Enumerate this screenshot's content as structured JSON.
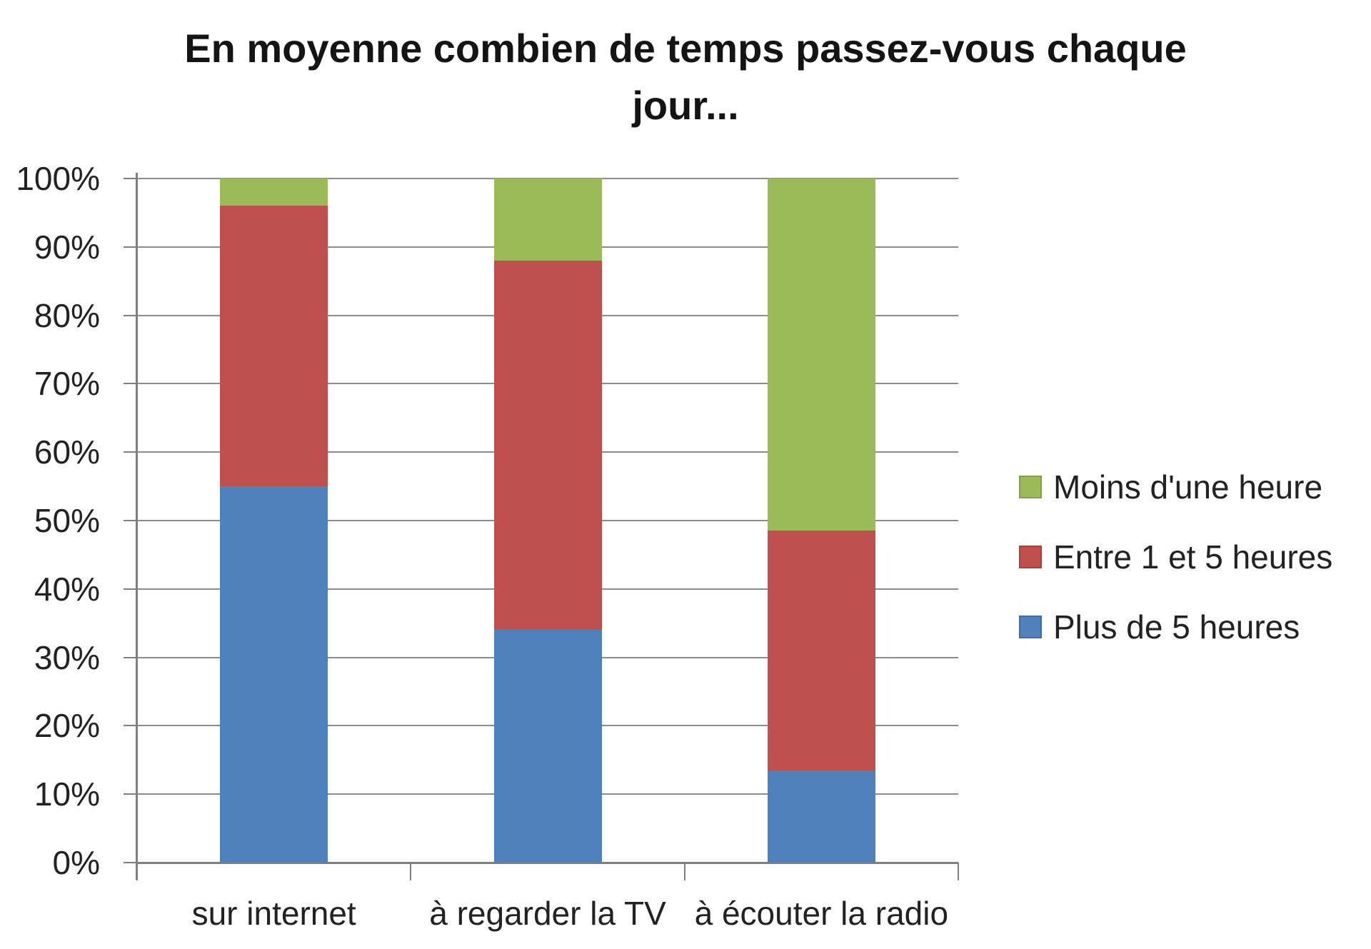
{
  "title": {
    "line1": "En moyenne combien de temps passez-vous chaque",
    "line2": "jour..."
  },
  "chart_data": {
    "type": "bar",
    "subtype": "stacked-100-percent-column",
    "title": "En moyenne combien de temps passez-vous chaque jour...",
    "categories": [
      "sur internet",
      "à regarder la TV",
      "à écouter la radio"
    ],
    "series": [
      {
        "name": "Plus de 5 heures",
        "color": "#4F81BD",
        "values": [
          55,
          34,
          13.5
        ]
      },
      {
        "name": "Entre 1 et 5 heures",
        "color": "#C0504D",
        "values": [
          41,
          54,
          35
        ]
      },
      {
        "name": "Moins d'une heure",
        "color": "#9BBB59",
        "values": [
          4,
          12,
          51.5
        ]
      }
    ],
    "xlabel": "",
    "ylabel": "",
    "ylim": [
      0,
      100
    ],
    "y_tick_step": 10,
    "y_tick_labels": [
      "100%",
      "90%",
      "80%",
      "70%",
      "60%",
      "50%",
      "40%",
      "30%",
      "20%",
      "10%",
      "0%"
    ],
    "grid": true,
    "legend_position": "right",
    "legend_items": [
      {
        "label": "Moins d'une heure",
        "color": "#9BBB59"
      },
      {
        "label": "Entre 1 et 5 heures",
        "color": "#C0504D"
      },
      {
        "label": "Plus de 5 heures",
        "color": "#4F81BD"
      }
    ]
  },
  "style": {
    "background": "#ffffff",
    "grid_color": "#8c8c8c",
    "axis_color": "#7f7f7f",
    "text_color": "#222222",
    "title_color": "#141414"
  }
}
